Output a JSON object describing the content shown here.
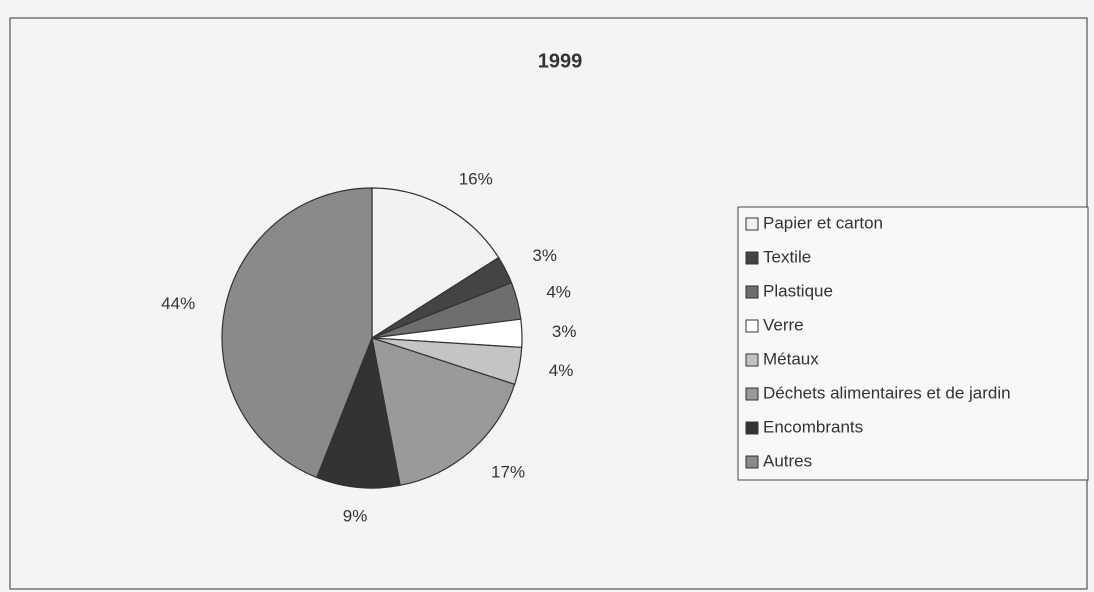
{
  "chart_data": {
    "type": "pie",
    "title": "1999",
    "categories": [
      "Papier et carton",
      "Textile",
      "Plastique",
      "Verre",
      "Métaux",
      "Déchets alimentaires et de jardin",
      "Encombrants",
      "Autres"
    ],
    "values": [
      16,
      3,
      4,
      3,
      4,
      17,
      9,
      44
    ],
    "value_labels": [
      "16%",
      "3%",
      "4%",
      "3%",
      "4%",
      "17%",
      "9%",
      "44%"
    ],
    "colors": [
      "#f2f2f2",
      "#444444",
      "#6e6e6e",
      "#ffffff",
      "#c4c4c4",
      "#9a9a9a",
      "#333333",
      "#8a8a8a"
    ],
    "legend": "right"
  }
}
